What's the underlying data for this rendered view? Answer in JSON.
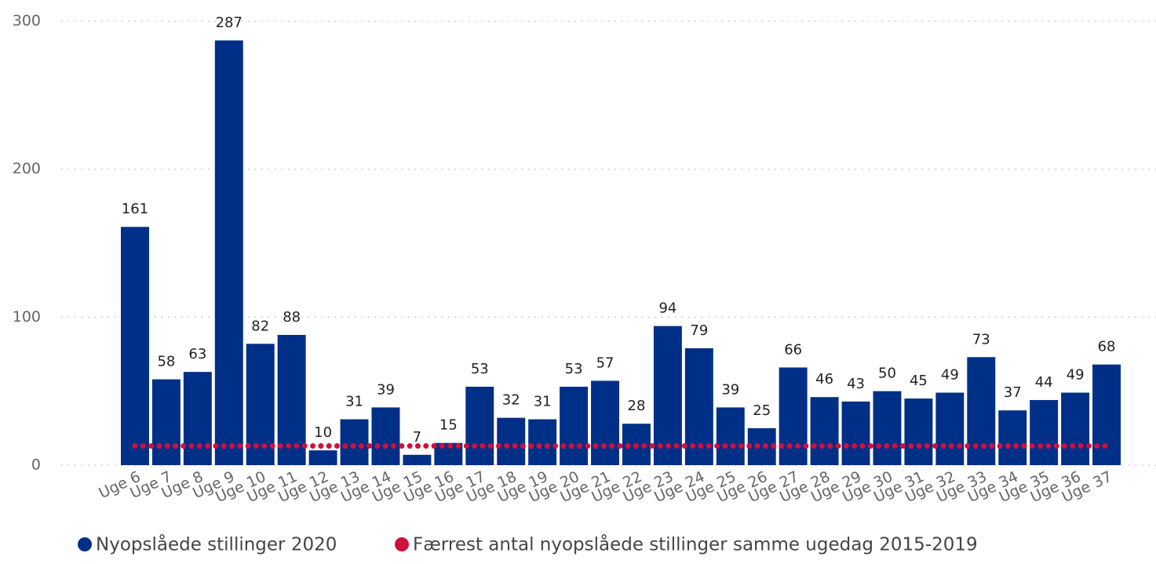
{
  "chart_data": {
    "type": "bar",
    "categories": [
      "Uge 6",
      "Uge 7",
      "Uge 8",
      "Uge 9",
      "Uge 10",
      "Uge 11",
      "Uge 12",
      "Uge 13",
      "Uge 14",
      "Uge 15",
      "Uge 16",
      "Uge 17",
      "Uge 18",
      "Uge 19",
      "Uge 20",
      "Uge 21",
      "Uge 22",
      "Uge 23",
      "Uge 24",
      "Uge 25",
      "Uge 26",
      "Uge 27",
      "Uge 28",
      "Uge 29",
      "Uge 30",
      "Uge 31",
      "Uge 32",
      "Uge 33",
      "Uge 34",
      "Uge 35",
      "Uge 36",
      "Uge 37"
    ],
    "series": [
      {
        "name": "Nyopslåede stillinger 2020",
        "type": "bar",
        "color": "#002f87",
        "values": [
          161,
          58,
          63,
          287,
          82,
          88,
          10,
          31,
          39,
          7,
          15,
          53,
          32,
          31,
          53,
          57,
          28,
          94,
          79,
          39,
          25,
          66,
          46,
          43,
          50,
          45,
          49,
          73,
          37,
          44,
          49,
          68
        ]
      },
      {
        "name": "Færrest antal nyopslåede stillinger samme ugedag 2015-2019",
        "type": "line",
        "color": "#d0103a",
        "values": [
          13,
          13,
          13,
          13,
          13,
          13,
          13,
          13,
          13,
          13,
          13,
          13,
          13,
          13,
          13,
          13,
          13,
          13,
          13,
          13,
          13,
          13,
          13,
          13,
          13,
          13,
          13,
          13,
          13,
          13,
          13,
          13
        ]
      }
    ],
    "ylim": [
      0,
      300
    ],
    "yticks": [
      0,
      100,
      200,
      300
    ],
    "grid": true
  }
}
